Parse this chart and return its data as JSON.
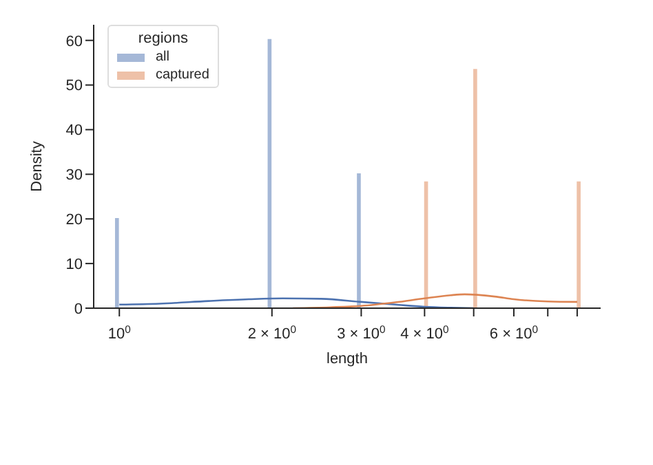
{
  "chart_data": {
    "type": "bar",
    "xlabel": "length",
    "ylabel": "Density",
    "legend_title": "regions",
    "legend": "top left",
    "log": "x",
    "xlim": [
      0.89,
      8.9
    ],
    "xticks": [
      {
        "value": 1,
        "label": "10$^{0}$"
      },
      {
        "value": 2,
        "label": "2 × 10$^{0}$"
      },
      {
        "value": 3,
        "label": "3 × 10$^{0}$"
      },
      {
        "value": 4,
        "label": "4 × 10$^{0}$"
      },
      {
        "value": 5,
        "label": null
      },
      {
        "value": 6,
        "label": "6 × 10$^{0}$"
      },
      {
        "value": 7,
        "label": null
      },
      {
        "value": 8,
        "label": null
      }
    ],
    "ylim": [
      0,
      63.5
    ],
    "yticks": [
      0,
      10,
      20,
      30,
      40,
      50,
      60
    ],
    "series": [
      {
        "name": "all",
        "color": "#a5b8d7",
        "x": [
          1,
          2,
          3
        ],
        "values": [
          20.2,
          60.3,
          30.2
        ]
      },
      {
        "name": "captured",
        "color": "#eec1a8",
        "x": [
          4,
          5,
          8
        ],
        "values": [
          28.4,
          53.6,
          28.4
        ]
      },
      {
        "type": "line",
        "color": "#4c72b0",
        "x": [
          1,
          1.2,
          1.5,
          1.8,
          2.1,
          2.5,
          3,
          3.5,
          4,
          4.5,
          5
        ],
        "values": [
          0.8,
          1.0,
          1.6,
          2.0,
          2.2,
          2.1,
          1.4,
          0.8,
          0.3,
          0.1,
          0
        ]
      },
      {
        "type": "line",
        "color": "#dd8452",
        "x": [
          2.2,
          2.6,
          3,
          3.5,
          4,
          4.5,
          4.8,
          5.5,
          6,
          7,
          8
        ],
        "values": [
          0,
          0.2,
          0.5,
          1.3,
          2.2,
          2.9,
          3.1,
          2.6,
          2.0,
          1.5,
          1.4
        ]
      }
    ]
  }
}
